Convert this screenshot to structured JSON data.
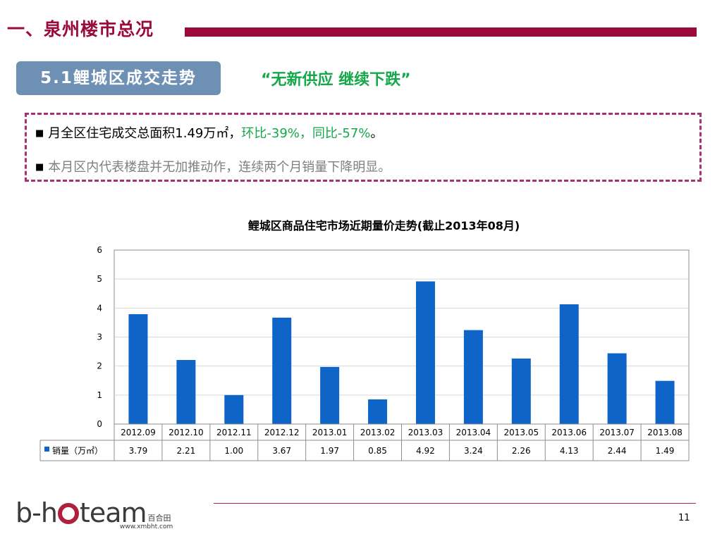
{
  "header": {
    "section_title": "一、泉州楼市总况",
    "sub_title": "5.1鲤城区成交走势",
    "quote": "“无新供应 继续下跌”"
  },
  "bullets": {
    "b1_prefix": "月全区住宅成交总面积1.49万㎡，",
    "b1_highlight": "环比-39%，同比-57%",
    "b1_suffix": "。",
    "b2": "本月区内代表楼盘并无加推动作，连续两个月销量下降明显。",
    "marker": "■"
  },
  "chart_data": {
    "type": "bar",
    "title": "鲤城区商品住宅市场近期量价走势(截止2013年08月)",
    "categories": [
      "2012.09",
      "2012.10",
      "2012.11",
      "2012.12",
      "2013.01",
      "2013.02",
      "2013.03",
      "2013.04",
      "2013.05",
      "2013.06",
      "2013.07",
      "2013.08"
    ],
    "series": [
      {
        "name": "销量（万㎡）",
        "values": [
          3.79,
          2.21,
          1.0,
          3.67,
          1.97,
          0.85,
          4.92,
          3.24,
          2.26,
          4.13,
          2.44,
          1.49
        ]
      }
    ],
    "value_labels": [
      "3.79",
      "2.21",
      "1.00",
      "3.67",
      "1.97",
      "0.85",
      "4.92",
      "3.24",
      "2.26",
      "4.13",
      "2.44",
      "1.49"
    ],
    "ylim": [
      0,
      6
    ],
    "yticks": [
      "0",
      "1",
      "2",
      "3",
      "4",
      "5",
      "6"
    ],
    "grid": true,
    "legend": "data-table-left",
    "colors": {
      "bar": "#0f64c8",
      "grid": "#d9d9d9",
      "axis": "#8c8c8c"
    }
  },
  "footer": {
    "logo_left": "b-h",
    "logo_right": "team",
    "logo_cn": "百合田",
    "logo_url": "www.xmbht.com",
    "page_number": "11"
  }
}
